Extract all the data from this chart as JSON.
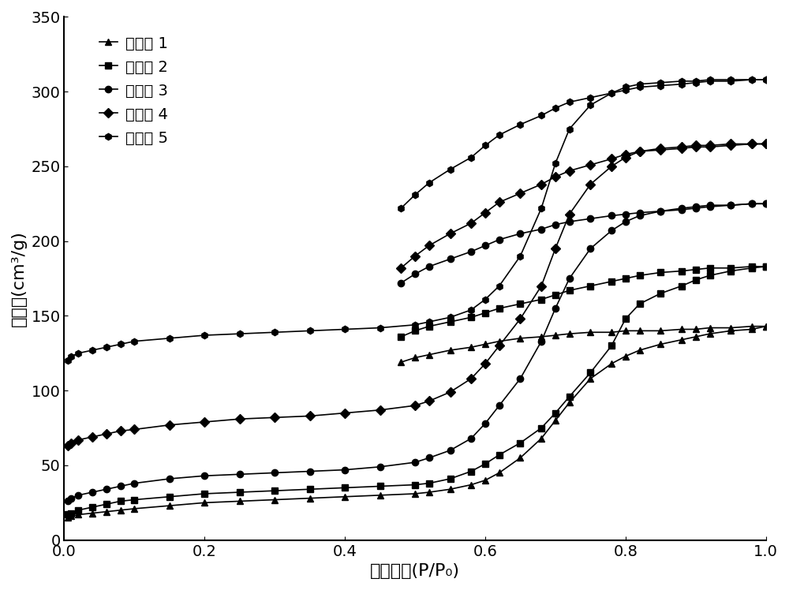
{
  "xlabel": "相对压力(P/P₀)",
  "ylabel": "吸附量(cm³/g)",
  "xlim": [
    0.0,
    1.0
  ],
  "ylim": [
    0,
    350
  ],
  "xticks": [
    0.0,
    0.2,
    0.4,
    0.6,
    0.8,
    1.0
  ],
  "yticks": [
    0,
    50,
    100,
    150,
    200,
    250,
    300,
    350
  ],
  "legend_labels": [
    "实施例 1",
    "实施例 2",
    "实施例 3",
    "实施例 4",
    "实施例 5"
  ],
  "markers": [
    "^",
    "s",
    "o",
    "D",
    "h"
  ],
  "color": "black",
  "series": [
    {
      "name": "实施例 1",
      "adsorption": {
        "x": [
          0.005,
          0.01,
          0.02,
          0.04,
          0.06,
          0.08,
          0.1,
          0.15,
          0.2,
          0.25,
          0.3,
          0.35,
          0.4,
          0.45,
          0.5,
          0.52,
          0.55,
          0.58,
          0.6,
          0.62,
          0.65,
          0.68,
          0.7,
          0.72,
          0.75,
          0.78,
          0.8,
          0.82,
          0.85,
          0.88,
          0.9,
          0.92,
          0.95,
          0.98,
          1.0
        ],
        "y": [
          15,
          16,
          17,
          18,
          19,
          20,
          21,
          23,
          25,
          26,
          27,
          28,
          29,
          30,
          31,
          32,
          34,
          37,
          40,
          45,
          55,
          68,
          80,
          92,
          108,
          118,
          123,
          127,
          131,
          134,
          136,
          138,
          140,
          141,
          143
        ]
      },
      "desorption": {
        "x": [
          1.0,
          0.98,
          0.95,
          0.92,
          0.9,
          0.88,
          0.85,
          0.82,
          0.8,
          0.78,
          0.75,
          0.72,
          0.7,
          0.68,
          0.65,
          0.62,
          0.6,
          0.58,
          0.55,
          0.52,
          0.5,
          0.48
        ],
        "y": [
          143,
          143,
          142,
          142,
          141,
          141,
          140,
          140,
          140,
          139,
          139,
          138,
          137,
          136,
          135,
          133,
          131,
          129,
          127,
          124,
          122,
          119
        ]
      }
    },
    {
      "name": "实施例 2",
      "adsorption": {
        "x": [
          0.005,
          0.01,
          0.02,
          0.04,
          0.06,
          0.08,
          0.1,
          0.15,
          0.2,
          0.25,
          0.3,
          0.35,
          0.4,
          0.45,
          0.5,
          0.52,
          0.55,
          0.58,
          0.6,
          0.62,
          0.65,
          0.68,
          0.7,
          0.72,
          0.75,
          0.78,
          0.8,
          0.82,
          0.85,
          0.88,
          0.9,
          0.92,
          0.95,
          0.98,
          1.0
        ],
        "y": [
          17,
          18,
          20,
          22,
          24,
          26,
          27,
          29,
          31,
          32,
          33,
          34,
          35,
          36,
          37,
          38,
          41,
          46,
          51,
          57,
          65,
          75,
          85,
          96,
          112,
          130,
          148,
          158,
          165,
          170,
          174,
          177,
          180,
          182,
          183
        ]
      },
      "desorption": {
        "x": [
          1.0,
          0.98,
          0.95,
          0.92,
          0.9,
          0.88,
          0.85,
          0.82,
          0.8,
          0.78,
          0.75,
          0.72,
          0.7,
          0.68,
          0.65,
          0.62,
          0.6,
          0.58,
          0.55,
          0.52,
          0.5,
          0.48
        ],
        "y": [
          183,
          183,
          182,
          182,
          181,
          180,
          179,
          177,
          175,
          173,
          170,
          167,
          164,
          161,
          158,
          155,
          152,
          149,
          146,
          143,
          140,
          136
        ]
      }
    },
    {
      "name": "实施例 3",
      "adsorption": {
        "x": [
          0.005,
          0.01,
          0.02,
          0.04,
          0.06,
          0.08,
          0.1,
          0.15,
          0.2,
          0.25,
          0.3,
          0.35,
          0.4,
          0.45,
          0.5,
          0.52,
          0.55,
          0.58,
          0.6,
          0.62,
          0.65,
          0.68,
          0.7,
          0.72,
          0.75,
          0.78,
          0.8,
          0.82,
          0.85,
          0.88,
          0.9,
          0.92,
          0.95,
          0.98,
          1.0
        ],
        "y": [
          26,
          28,
          30,
          32,
          34,
          36,
          38,
          41,
          43,
          44,
          45,
          46,
          47,
          49,
          52,
          55,
          60,
          68,
          78,
          90,
          108,
          133,
          155,
          175,
          195,
          207,
          213,
          217,
          220,
          222,
          223,
          224,
          224,
          225,
          225
        ]
      },
      "desorption": {
        "x": [
          1.0,
          0.98,
          0.95,
          0.92,
          0.9,
          0.88,
          0.85,
          0.82,
          0.8,
          0.78,
          0.75,
          0.72,
          0.7,
          0.68,
          0.65,
          0.62,
          0.6,
          0.58,
          0.55,
          0.52,
          0.5,
          0.48
        ],
        "y": [
          225,
          225,
          224,
          223,
          222,
          221,
          220,
          219,
          218,
          217,
          215,
          213,
          211,
          208,
          205,
          201,
          197,
          193,
          188,
          183,
          178,
          172
        ]
      }
    },
    {
      "name": "实施例 4",
      "adsorption": {
        "x": [
          0.005,
          0.01,
          0.02,
          0.04,
          0.06,
          0.08,
          0.1,
          0.15,
          0.2,
          0.25,
          0.3,
          0.35,
          0.4,
          0.45,
          0.5,
          0.52,
          0.55,
          0.58,
          0.6,
          0.62,
          0.65,
          0.68,
          0.7,
          0.72,
          0.75,
          0.78,
          0.8,
          0.82,
          0.85,
          0.88,
          0.9,
          0.92,
          0.95,
          0.98,
          1.0
        ],
        "y": [
          63,
          65,
          67,
          69,
          71,
          73,
          74,
          77,
          79,
          81,
          82,
          83,
          85,
          87,
          90,
          93,
          99,
          108,
          118,
          130,
          148,
          170,
          195,
          218,
          238,
          250,
          256,
          260,
          262,
          263,
          264,
          264,
          265,
          265,
          265
        ]
      },
      "desorption": {
        "x": [
          1.0,
          0.98,
          0.95,
          0.92,
          0.9,
          0.88,
          0.85,
          0.82,
          0.8,
          0.78,
          0.75,
          0.72,
          0.7,
          0.68,
          0.65,
          0.62,
          0.6,
          0.58,
          0.55,
          0.52,
          0.5,
          0.48
        ],
        "y": [
          265,
          265,
          264,
          263,
          263,
          262,
          261,
          260,
          258,
          255,
          251,
          247,
          243,
          238,
          232,
          226,
          219,
          212,
          205,
          197,
          190,
          182
        ]
      }
    },
    {
      "name": "实施例 5",
      "adsorption": {
        "x": [
          0.005,
          0.01,
          0.02,
          0.04,
          0.06,
          0.08,
          0.1,
          0.15,
          0.2,
          0.25,
          0.3,
          0.35,
          0.4,
          0.45,
          0.5,
          0.52,
          0.55,
          0.58,
          0.6,
          0.62,
          0.65,
          0.68,
          0.7,
          0.72,
          0.75,
          0.78,
          0.8,
          0.82,
          0.85,
          0.88,
          0.9,
          0.92,
          0.95,
          0.98,
          1.0
        ],
        "y": [
          120,
          123,
          125,
          127,
          129,
          131,
          133,
          135,
          137,
          138,
          139,
          140,
          141,
          142,
          144,
          146,
          149,
          154,
          161,
          170,
          190,
          222,
          252,
          275,
          291,
          299,
          303,
          305,
          306,
          307,
          307,
          308,
          308,
          308,
          308
        ]
      },
      "desorption": {
        "x": [
          1.0,
          0.98,
          0.95,
          0.92,
          0.9,
          0.88,
          0.85,
          0.82,
          0.8,
          0.78,
          0.75,
          0.72,
          0.7,
          0.68,
          0.65,
          0.62,
          0.6,
          0.58,
          0.55,
          0.52,
          0.5,
          0.48
        ],
        "y": [
          308,
          308,
          307,
          307,
          306,
          305,
          304,
          303,
          301,
          299,
          296,
          293,
          289,
          284,
          278,
          271,
          264,
          256,
          248,
          239,
          231,
          222
        ]
      }
    }
  ]
}
